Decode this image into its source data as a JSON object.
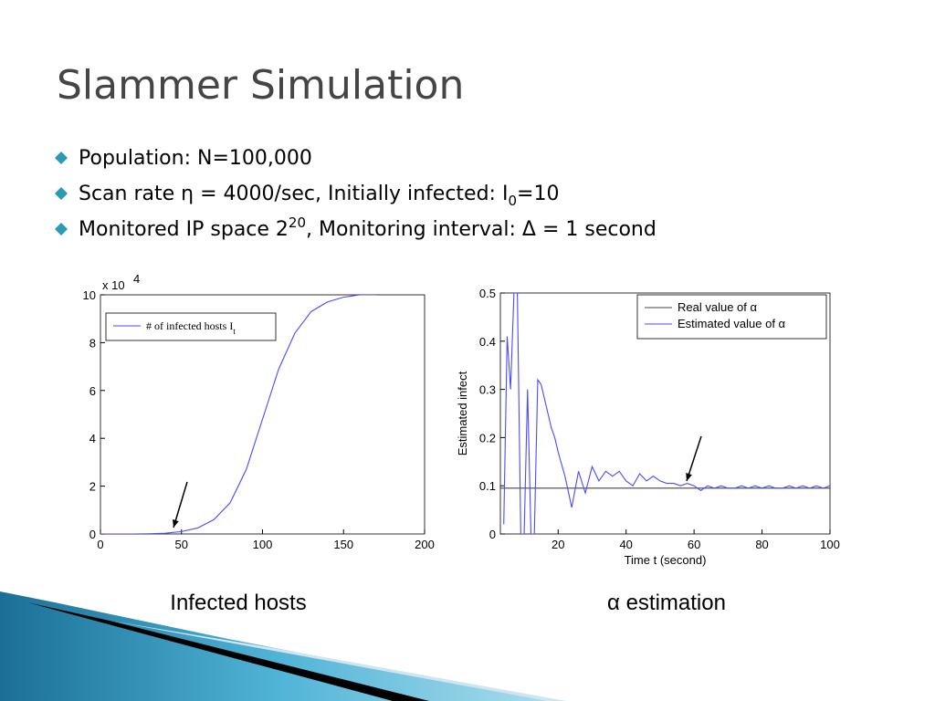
{
  "title": "Slammer Simulation",
  "bullets": [
    [
      {
        "text": "Population: N=100,000"
      }
    ],
    [
      {
        "text": "Scan rate  η = 4000/sec,  Initially infected: I"
      },
      {
        "text": "0",
        "shift": "sub"
      },
      {
        "text": "=10"
      }
    ],
    [
      {
        "text": "Monitored IP space 2"
      },
      {
        "text": "20",
        "shift": "sup"
      },
      {
        "text": ",  Monitoring interval:  Δ = 1 second"
      }
    ]
  ],
  "chart_data": [
    {
      "type": "line",
      "caption": "Infected hosts",
      "y_scale": {
        "text": "x 10",
        "exponent": "4"
      },
      "xlim": [
        0,
        200
      ],
      "xticks": [
        0,
        50,
        100,
        150,
        200
      ],
      "ylim": [
        0,
        10
      ],
      "yticks": [
        0,
        2,
        4,
        6,
        8,
        10
      ],
      "legend": "upper left",
      "series": [
        {
          "name": "# of infected hosts I",
          "name_subscript": "t",
          "color": "#4a4aff",
          "x": [
            0,
            10,
            20,
            30,
            40,
            50,
            60,
            70,
            80,
            90,
            100,
            110,
            120,
            130,
            140,
            150,
            160,
            170
          ],
          "values": [
            0,
            0,
            0,
            0.01,
            0.03,
            0.1,
            0.25,
            0.6,
            1.3,
            2.7,
            4.8,
            6.9,
            8.4,
            9.3,
            9.7,
            9.9,
            10,
            10
          ]
        }
      ]
    },
    {
      "type": "line",
      "caption": "α estimation",
      "xlabel": "Time t (second)",
      "ylabel": "Estimated infect",
      "xlim": [
        3,
        100
      ],
      "xticks": [
        20,
        40,
        60,
        80,
        100
      ],
      "ylim": [
        0,
        0.5
      ],
      "yticks": [
        0,
        0.1,
        0.2,
        0.3,
        0.4,
        0.5
      ],
      "legend": "upper right",
      "series": [
        {
          "name": "Real value of α",
          "color": "#444444",
          "x": [
            3,
            100
          ],
          "values": [
            0.095,
            0.095
          ]
        },
        {
          "name": "Estimated value of α",
          "color": "#4a4aff",
          "x": [
            4,
            5,
            6,
            7,
            8,
            9,
            10,
            11,
            12,
            13,
            14,
            15,
            16,
            17,
            18,
            19,
            20,
            22,
            24,
            26,
            28,
            30,
            32,
            34,
            36,
            38,
            40,
            42,
            44,
            46,
            48,
            50,
            52,
            54,
            56,
            58,
            60,
            62,
            64,
            66,
            68,
            70,
            72,
            74,
            76,
            78,
            80,
            82,
            84,
            86,
            88,
            90,
            92,
            94,
            96,
            98,
            100
          ],
          "values": [
            0.02,
            0.41,
            0.3,
            0.5,
            0.5,
            0,
            0,
            0.3,
            0,
            0,
            0.32,
            0.31,
            0.28,
            0.25,
            0.22,
            0.2,
            0.17,
            0.12,
            0.055,
            0.13,
            0.085,
            0.14,
            0.11,
            0.13,
            0.12,
            0.13,
            0.11,
            0.1,
            0.125,
            0.11,
            0.12,
            0.11,
            0.105,
            0.105,
            0.1,
            0.105,
            0.1,
            0.09,
            0.1,
            0.095,
            0.1,
            0.095,
            0.095,
            0.1,
            0.095,
            0.1,
            0.095,
            0.1,
            0.095,
            0.095,
            0.1,
            0.095,
            0.1,
            0.095,
            0.1,
            0.095,
            0.1
          ]
        }
      ]
    }
  ]
}
